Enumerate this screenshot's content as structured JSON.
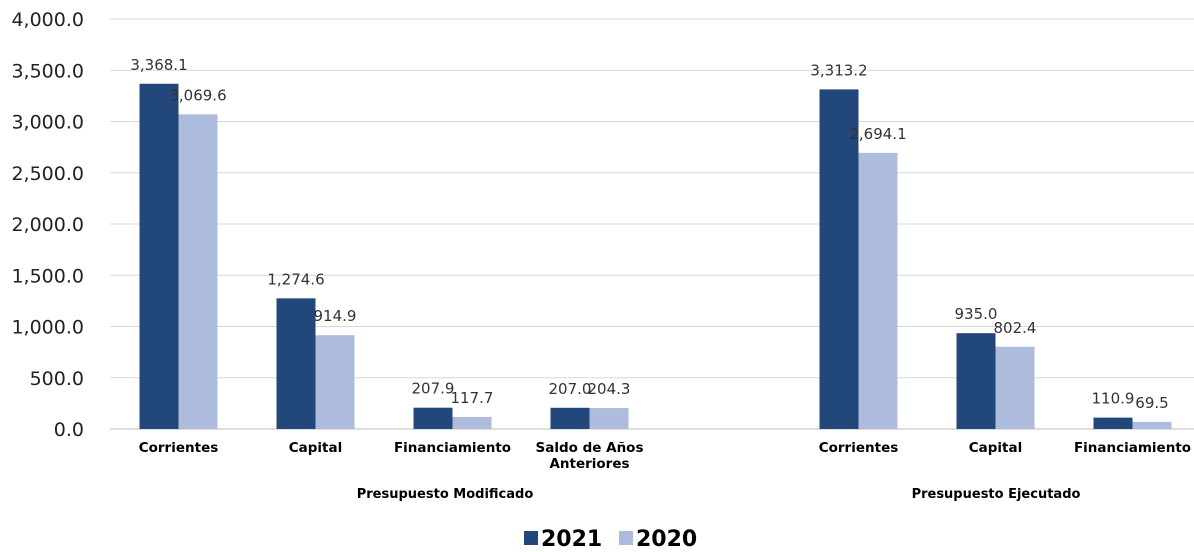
{
  "chart_data": {
    "type": "bar",
    "ylim": [
      0,
      4000
    ],
    "y_ticks": [
      "0.0",
      "500.0",
      "1,000.0",
      "1,500.0",
      "2,000.0",
      "2,500.0",
      "3,000.0",
      "3,500.0",
      "4,000.0"
    ],
    "y_tick_values": [
      0,
      500,
      1000,
      1500,
      2000,
      2500,
      3000,
      3500,
      4000
    ],
    "grid": true,
    "legend_position": "bottom",
    "colors": {
      "2021": "#22477b",
      "2020": "#adbcdd"
    },
    "groups": [
      {
        "name": "Presupuesto Modificado",
        "categories": [
          "Corrientes",
          "Capital",
          "Financiamiento",
          "Saldo de Años Anteriores"
        ]
      },
      {
        "name": "Presupuesto Ejecutado",
        "categories": [
          "Corrientes",
          "Capital",
          "Financiamiento"
        ]
      }
    ],
    "series": [
      {
        "name": "2021",
        "values": [
          3368.1,
          1274.6,
          207.9,
          207.0,
          3313.2,
          935.0,
          110.9
        ],
        "labels": [
          "3,368.1",
          "1,274.6",
          "207.9",
          "207.0",
          "3,313.2",
          "935.0",
          "110.9"
        ]
      },
      {
        "name": "2020",
        "values": [
          3069.6,
          914.9,
          117.7,
          204.3,
          2694.1,
          802.4,
          69.5
        ],
        "labels": [
          "3,069.6",
          "914.9",
          "117.7",
          "204.3",
          "2,694.1",
          "802.4",
          "69.5"
        ]
      }
    ]
  }
}
